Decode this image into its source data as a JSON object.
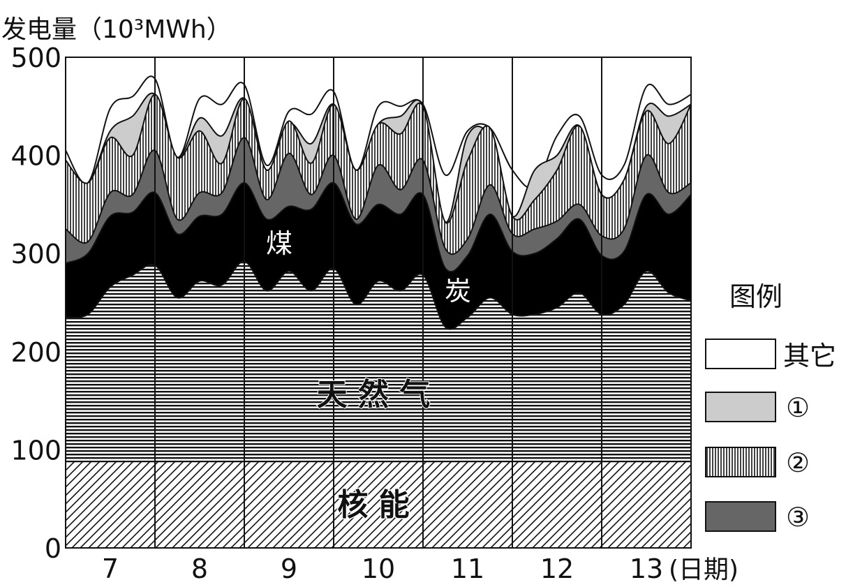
{
  "chart_data": {
    "type": "area",
    "y_axis_label": "发电量（10³MWh）",
    "x_axis_label": "(日期)",
    "ylim": [
      0,
      500
    ],
    "y_ticks": [
      0,
      100,
      200,
      300,
      400,
      500
    ],
    "x_ticks": [
      "7",
      "8",
      "9",
      "10",
      "11",
      "12",
      "13"
    ],
    "stack_order": [
      "核能",
      "天然气",
      "煤炭",
      "③",
      "②",
      "①",
      "其它"
    ],
    "area_labels": {
      "nuclear": "核 能",
      "gas": "天 然 气",
      "coal": [
        "煤",
        "炭"
      ]
    },
    "legend": {
      "title": "图例",
      "placement": "right",
      "items": [
        {
          "label": "其它",
          "pattern": "white"
        },
        {
          "label": "①",
          "pattern": "light-gray"
        },
        {
          "label": "②",
          "pattern": "vertical-lines"
        },
        {
          "label": "③",
          "pattern": "dark-gray"
        }
      ]
    },
    "x_days": [
      6.5,
      6.75,
      7.0,
      7.25,
      7.5,
      7.75,
      8.0,
      8.25,
      8.5,
      8.75,
      9.0,
      9.25,
      9.5,
      9.75,
      10.0,
      10.25,
      10.5,
      10.75,
      11.0,
      11.25,
      11.5,
      11.75,
      12.0,
      12.25,
      12.5,
      12.75,
      13.0,
      13.25,
      13.5
    ],
    "boundaries": {
      "nuclear_top": [
        88,
        88,
        88,
        88,
        88,
        88,
        88,
        88,
        88,
        88,
        88,
        88,
        88,
        88,
        88,
        88,
        88,
        88,
        88,
        88,
        88,
        88,
        88,
        88,
        88,
        88,
        88,
        88,
        88
      ],
      "gas_top": [
        235,
        238,
        266,
        278,
        288,
        255,
        272,
        268,
        292,
        262,
        282,
        262,
        285,
        248,
        272,
        262,
        278,
        225,
        235,
        255,
        238,
        238,
        245,
        260,
        238,
        248,
        282,
        260,
        252
      ],
      "coal_top": [
        290,
        300,
        338,
        342,
        362,
        320,
        338,
        340,
        372,
        335,
        348,
        345,
        372,
        330,
        350,
        340,
        360,
        285,
        298,
        340,
        302,
        300,
        315,
        335,
        298,
        302,
        360,
        340,
        360
      ],
      "third_top": [
        325,
        312,
        362,
        360,
        405,
        335,
        362,
        362,
        418,
        355,
        402,
        360,
        400,
        335,
        390,
        365,
        395,
        305,
        315,
        370,
        320,
        325,
        333,
        350,
        318,
        325,
        400,
        362,
        372
      ],
      "second_top": [
        395,
        372,
        418,
        400,
        462,
        398,
        425,
        392,
        458,
        385,
        435,
        392,
        452,
        385,
        432,
        422,
        450,
        332,
        395,
        428,
        338,
        355,
        385,
        430,
        360,
        375,
        445,
        412,
        452
      ],
      "first_top": [
        395,
        372,
        425,
        440,
        462,
        398,
        438,
        420,
        458,
        385,
        432,
        412,
        452,
        385,
        432,
        440,
        450,
        332,
        420,
        418,
        338,
        385,
        400,
        430,
        360,
        375,
        450,
        440,
        452
      ],
      "other_top": [
        405,
        372,
        448,
        460,
        478,
        398,
        458,
        452,
        472,
        390,
        445,
        442,
        465,
        385,
        450,
        450,
        452,
        380,
        425,
        428,
        385,
        368,
        420,
        440,
        380,
        390,
        470,
        452,
        462
      ]
    }
  }
}
